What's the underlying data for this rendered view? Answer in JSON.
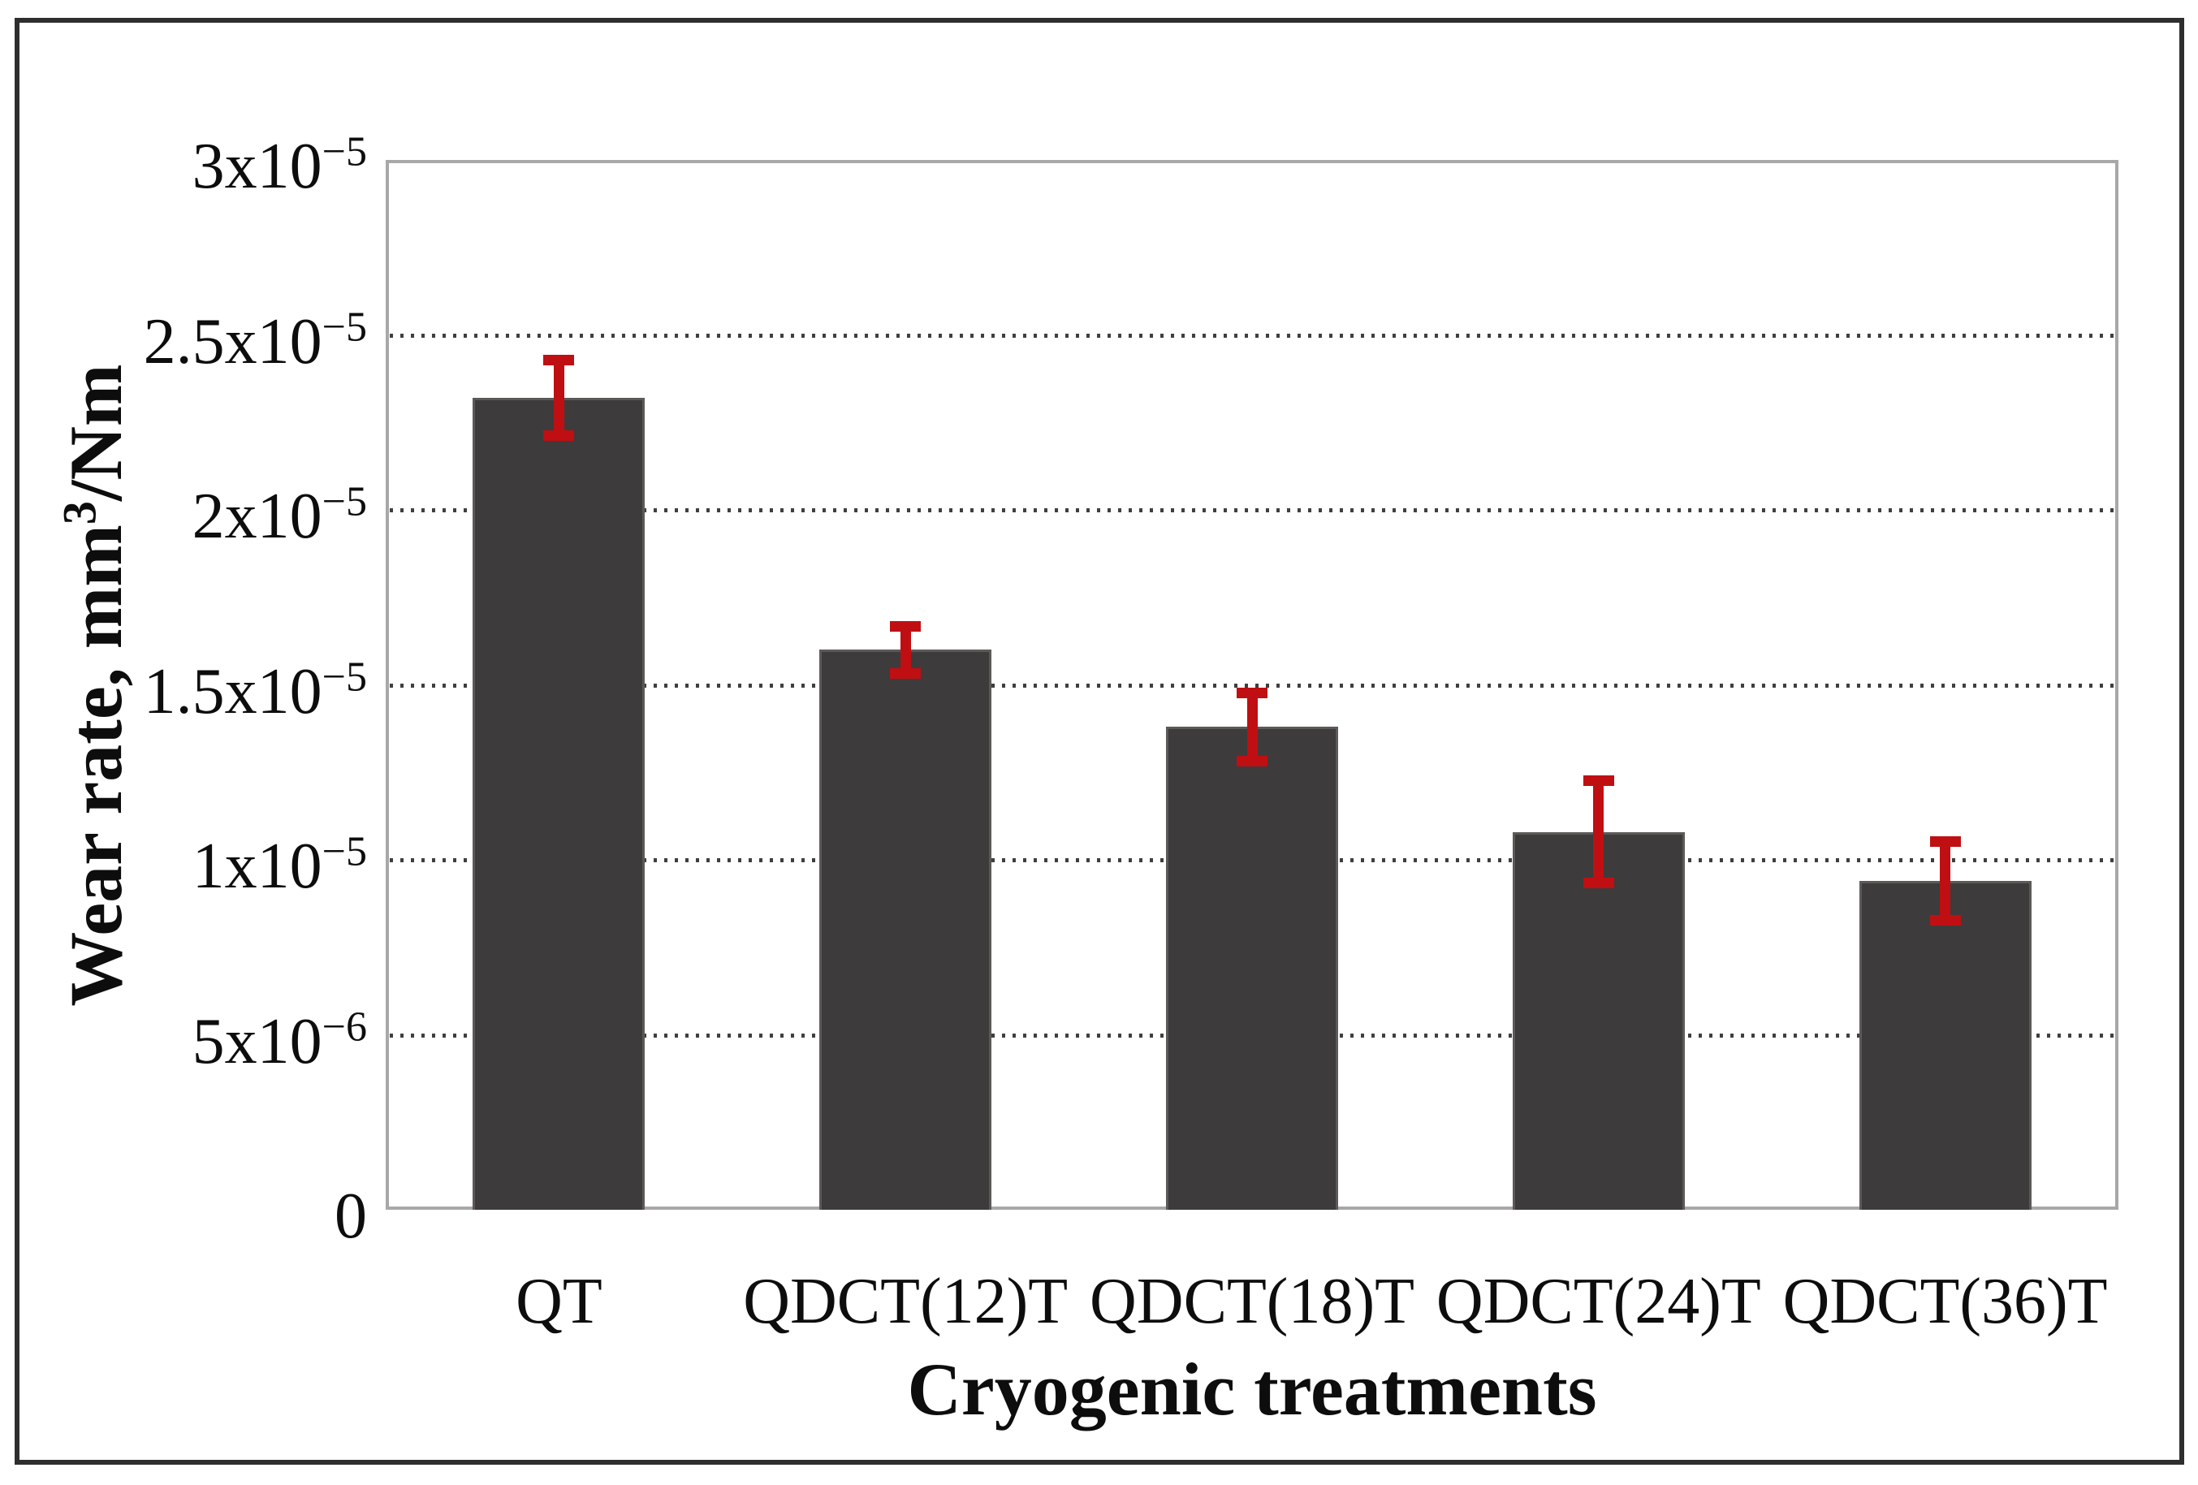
{
  "figure": {
    "background_color": "#ffffff",
    "outer_border_color": "#2e2e2e",
    "plot_border_color": "#a8a8a8"
  },
  "chart_data": {
    "type": "bar",
    "title": "",
    "xlabel": "Cryogenic treatments",
    "ylabel": "Wear rate, mm³/Nm",
    "ylabel_parts": {
      "prefix": "Wear rate, mm",
      "sup": "3",
      "suffix": "/Nm"
    },
    "categories": [
      "QT",
      "QDCT(12)T",
      "QDCT(18)T",
      "QDCT(24)T",
      "QDCT(36)T"
    ],
    "values": [
      2.32e-05,
      1.6e-05,
      1.38e-05,
      1.08e-05,
      9.4e-06
    ],
    "errors": [
      1.2e-06,
      8e-07,
      1.1e-06,
      1.6e-06,
      1.25e-06
    ],
    "ylim": [
      0,
      3e-05
    ],
    "y_ticks": [
      {
        "value": 3e-05,
        "base": "3x10",
        "exp": "−5"
      },
      {
        "value": 2.5e-05,
        "base": "2.5x10",
        "exp": "−5"
      },
      {
        "value": 2e-05,
        "base": "2x10",
        "exp": "−5"
      },
      {
        "value": 1.5e-05,
        "base": "1.5x10",
        "exp": "−5"
      },
      {
        "value": 1e-05,
        "base": "1x10",
        "exp": "−5"
      },
      {
        "value": 5e-06,
        "base": "5x10",
        "exp": "−6"
      },
      {
        "value": 0,
        "base": "0",
        "exp": ""
      }
    ],
    "grid": "horizontal dotted lines at 5e-6 intervals",
    "legend": "none",
    "bar_color": "#3d3b3b",
    "bar_border_color": "#5c5957",
    "error_bar_color": "#c00f12",
    "gridline_color": "#3f3f3f"
  }
}
